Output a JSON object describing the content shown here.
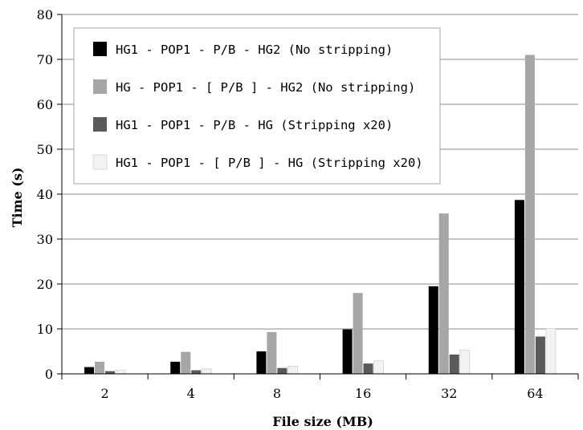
{
  "chart_data": {
    "type": "bar",
    "xlabel": "File size (MB)",
    "ylabel": "Time (s)",
    "ylim": [
      0,
      80
    ],
    "yticks": [
      0,
      10,
      20,
      30,
      40,
      50,
      60,
      70,
      80
    ],
    "categories": [
      "2",
      "4",
      "8",
      "16",
      "32",
      "64"
    ],
    "grid": "horizontal",
    "legend_position": "top-left",
    "series": [
      {
        "name": "HG1 - POP1 - P/B - HG2 (No stripping)",
        "color": "#000000",
        "values": [
          1.5,
          2.7,
          5.0,
          9.9,
          19.5,
          38.7
        ]
      },
      {
        "name": "HG - POP1 - [ P/B ] - HG2 (No stripping)",
        "color": "#a6a6a6",
        "values": [
          2.7,
          4.9,
          9.3,
          18.0,
          35.7,
          71.0
        ]
      },
      {
        "name": "HG1 - POP1 - P/B - HG (Stripping x20)",
        "color": "#595959",
        "values": [
          0.6,
          0.8,
          1.3,
          2.3,
          4.3,
          8.3
        ]
      },
      {
        "name": "HG1 - POP1 - [ P/B ] - HG (Stripping x20)",
        "color": "#f2f2f2",
        "values": [
          0.8,
          1.1,
          1.7,
          2.9,
          5.3,
          10.1
        ]
      }
    ]
  }
}
